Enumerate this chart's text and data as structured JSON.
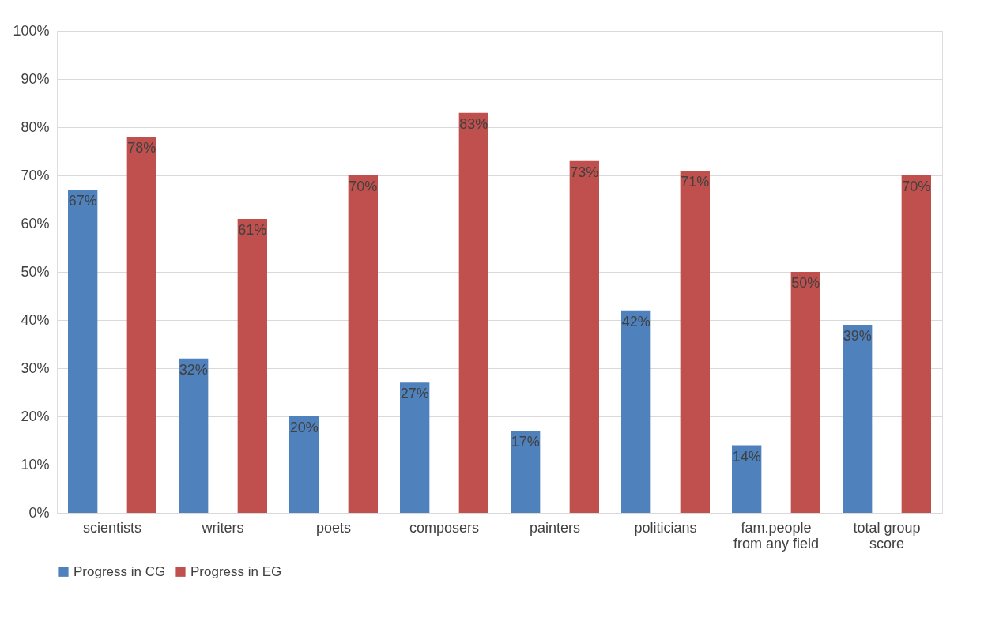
{
  "chart_data": {
    "type": "bar",
    "categories": [
      "scientists",
      "writers",
      "poets",
      "composers",
      "painters",
      "politicians",
      "fam.people from any field",
      "total group score"
    ],
    "series": [
      {
        "name": "Progress in CG",
        "color": "#4f81bd",
        "values": [
          67,
          32,
          20,
          27,
          17,
          42,
          14,
          39
        ],
        "value_labels": [
          "67%",
          "32%",
          "20%",
          "27%",
          "17%",
          "42%",
          "14%",
          "39%"
        ]
      },
      {
        "name": "Progress in EG",
        "color": "#c0504d",
        "values": [
          78,
          61,
          70,
          83,
          73,
          71,
          50,
          70
        ],
        "value_labels": [
          "78%",
          "61%",
          "70%",
          "83%",
          "73%",
          "71%",
          "50%",
          "70%"
        ]
      }
    ],
    "ylim": [
      0,
      100
    ],
    "yticks": [
      {
        "value": 0,
        "label": "0%"
      },
      {
        "value": 10,
        "label": "10%"
      },
      {
        "value": 20,
        "label": "20%"
      },
      {
        "value": 30,
        "label": "30%"
      },
      {
        "value": 40,
        "label": "40%"
      },
      {
        "value": 50,
        "label": "50%"
      },
      {
        "value": 60,
        "label": "60%"
      },
      {
        "value": 70,
        "label": "70%"
      },
      {
        "value": 80,
        "label": "80%"
      },
      {
        "value": 90,
        "label": "90%"
      },
      {
        "value": 100,
        "label": "100%"
      }
    ],
    "grid": "y",
    "legend": "bottom"
  }
}
